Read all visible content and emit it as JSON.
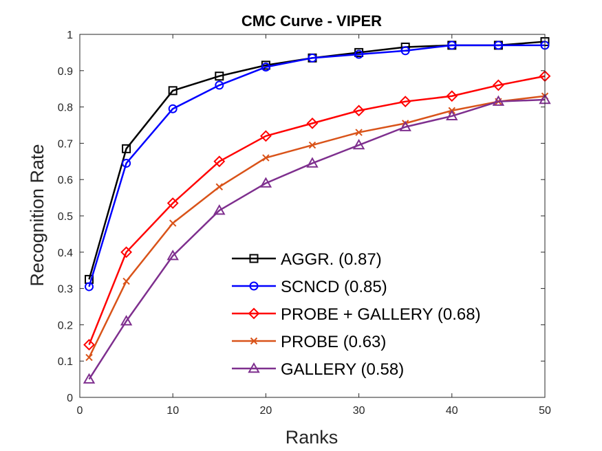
{
  "chart_data": {
    "type": "line",
    "title": "CMC Curve - VIPER",
    "xlabel": "Ranks",
    "ylabel": "Recognition Rate",
    "xlim": [
      0,
      50
    ],
    "ylim": [
      0,
      1
    ],
    "xticks": [
      0,
      10,
      20,
      30,
      40,
      50
    ],
    "yticks": [
      0,
      0.1,
      0.2,
      0.3,
      0.4,
      0.5,
      0.6,
      0.7,
      0.8,
      0.9,
      1
    ],
    "ytick_labels": [
      "0",
      "0.1",
      "0.2",
      "0.3",
      "0.4",
      "0.5",
      "0.6",
      "0.7",
      "0.8",
      "0.9",
      "1"
    ],
    "grid": false,
    "legend_position": "bottom-right",
    "x": [
      1,
      5,
      10,
      15,
      20,
      25,
      30,
      35,
      40,
      45,
      50
    ],
    "series": [
      {
        "name": "AGGR. (0.87)",
        "color": "#000000",
        "marker": "square",
        "values": [
          0.325,
          0.685,
          0.845,
          0.885,
          0.915,
          0.935,
          0.95,
          0.965,
          0.97,
          0.97,
          0.98
        ]
      },
      {
        "name": "SCNCD (0.85)",
        "color": "#0000ff",
        "marker": "circle",
        "values": [
          0.305,
          0.645,
          0.795,
          0.86,
          0.91,
          0.935,
          0.945,
          0.955,
          0.97,
          0.97,
          0.97
        ]
      },
      {
        "name": "PROBE + GALLERY (0.68)",
        "color": "#ff0000",
        "marker": "diamond",
        "values": [
          0.145,
          0.4,
          0.535,
          0.65,
          0.72,
          0.755,
          0.79,
          0.815,
          0.83,
          0.86,
          0.885
        ]
      },
      {
        "name": "PROBE (0.63)",
        "color": "#d95319",
        "marker": "x",
        "values": [
          0.11,
          0.32,
          0.48,
          0.58,
          0.66,
          0.695,
          0.73,
          0.755,
          0.79,
          0.815,
          0.83
        ]
      },
      {
        "name": "GALLERY (0.58)",
        "color": "#7e2f8e",
        "marker": "triangle",
        "values": [
          0.05,
          0.21,
          0.39,
          0.515,
          0.59,
          0.645,
          0.695,
          0.745,
          0.775,
          0.815,
          0.82
        ]
      }
    ]
  }
}
